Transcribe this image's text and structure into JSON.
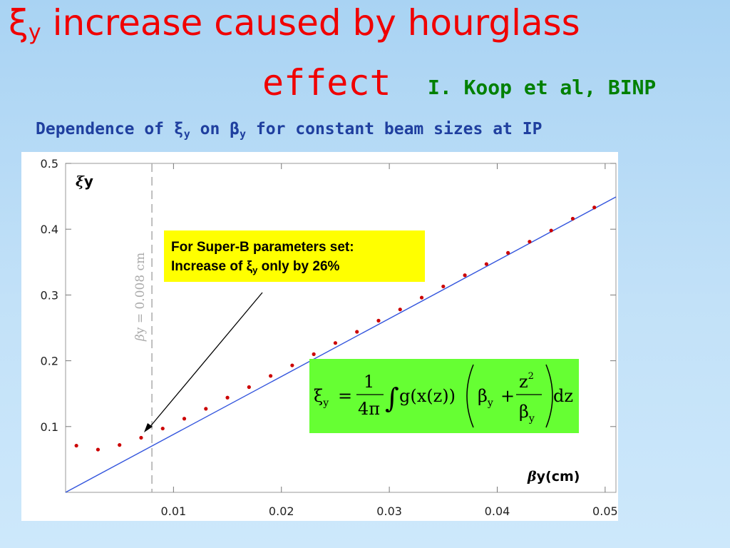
{
  "slide": {
    "title_symbol": "ξ",
    "title_symbol_sub": "y",
    "title_line1": "increase caused by hourglass",
    "title_line2": "effect",
    "author": "I. Koop et al, BINP",
    "subtitle_a": "Dependence of ξ",
    "subtitle_sub1": "y",
    "subtitle_b": " on β",
    "subtitle_sub2": "y",
    "subtitle_c": " for constant beam sizes at IP"
  },
  "callout": {
    "line1": "For Super-B parameters set:",
    "line2_a": "Increase of ξ",
    "line2_sub": "y",
    "line2_b": " only by 26%"
  },
  "formula": {
    "lhs": "ξ",
    "lhs_sub": "y",
    "equals": "=",
    "numerator": "1",
    "denominator": "4π",
    "integral": "∫",
    "integrand": "g(x(z))",
    "beta": "β",
    "beta_sub": "y",
    "plus": "+",
    "frac2_num": "z",
    "frac2_num_sup": "2",
    "frac2_den": "β",
    "frac2_den_sub": "y",
    "differential": "dz"
  },
  "colors": {
    "title": "#f00000",
    "author": "#008000",
    "subtitle": "#1f3f9f",
    "points": "#cc0000",
    "line": "#3355dd",
    "callout_bg": "#ffff00",
    "formula_bg": "#66ff33"
  },
  "chart_data": {
    "type": "scatter",
    "ylabel_symbol": "ξ",
    "ylabel_text": "y",
    "xlabel_symbol": "β",
    "xlabel_text": "y(cm)",
    "xlim": [
      0.0,
      0.051
    ],
    "ylim": [
      0.0,
      0.5
    ],
    "x_ticks": [
      0.01,
      0.02,
      0.03,
      0.04,
      0.05
    ],
    "x_tick_labels": [
      "0.01",
      "0.02",
      "0.03",
      "0.04",
      "0.05"
    ],
    "y_ticks": [
      0.1,
      0.2,
      0.3,
      0.4,
      0.5
    ],
    "y_tick_labels": [
      "0.1",
      "0.2",
      "0.3",
      "0.4",
      "0.5"
    ],
    "grid": false,
    "vline": {
      "x": 0.008,
      "label_symbol": "β",
      "label_text": "y = 0.008 cm"
    },
    "series": [
      {
        "kind": "points",
        "x": [
          0.001,
          0.003,
          0.005,
          0.007,
          0.009,
          0.011,
          0.013,
          0.015,
          0.017,
          0.019,
          0.021,
          0.023,
          0.025,
          0.027,
          0.029,
          0.031,
          0.033,
          0.035,
          0.037,
          0.039,
          0.041,
          0.043,
          0.045,
          0.047,
          0.049
        ],
        "y": [
          0.071,
          0.065,
          0.072,
          0.083,
          0.097,
          0.112,
          0.127,
          0.144,
          0.16,
          0.177,
          0.193,
          0.21,
          0.227,
          0.244,
          0.261,
          0.278,
          0.296,
          0.313,
          0.33,
          0.347,
          0.364,
          0.381,
          0.398,
          0.416,
          0.433
        ]
      },
      {
        "kind": "line",
        "x": [
          0.0,
          0.051
        ],
        "y": [
          0.0,
          0.449
        ]
      }
    ]
  }
}
